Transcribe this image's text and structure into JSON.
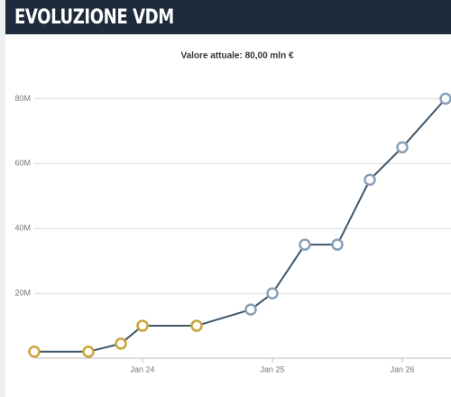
{
  "chart_data": {
    "type": "line",
    "title": "EVOLUZIONE VDM",
    "subtitle": "Valore attuale: 80,00 mln €",
    "x": [
      "Mar 23",
      "Aug 23",
      "Nov 23",
      "Jan 24",
      "Jun 24",
      "Nov 24",
      "Jan 25",
      "Apr 25",
      "Jul 25",
      "Oct 25",
      "Jan 26",
      "May 26"
    ],
    "series": [
      {
        "color": "#3f566b",
        "values": [
          2,
          2,
          4.5,
          10,
          10,
          15,
          20,
          35,
          35,
          55,
          65,
          80
        ]
      }
    ],
    "point_colors": [
      "#c9a53a",
      "#c9a53a",
      "#c9a53a",
      "#c9a53a",
      "#c9a53a",
      "#8aa0b8",
      "#8aa0b8",
      "#8aa0b8",
      "#8aa0b8",
      "#8aa0b8",
      "#8aa0b8",
      "#8aa0b8"
    ],
    "xlim": [
      "Mar 23",
      "May 26"
    ],
    "xticks": [
      "Jan 24",
      "Jan 25",
      "Jan 26"
    ],
    "ylim": [
      0,
      84
    ],
    "yticks": [
      {
        "value": 20,
        "label": "20M"
      },
      {
        "value": 40,
        "label": "40M"
      },
      {
        "value": 60,
        "label": "60M"
      },
      {
        "value": 80,
        "label": "80M"
      }
    ],
    "grid": true
  }
}
